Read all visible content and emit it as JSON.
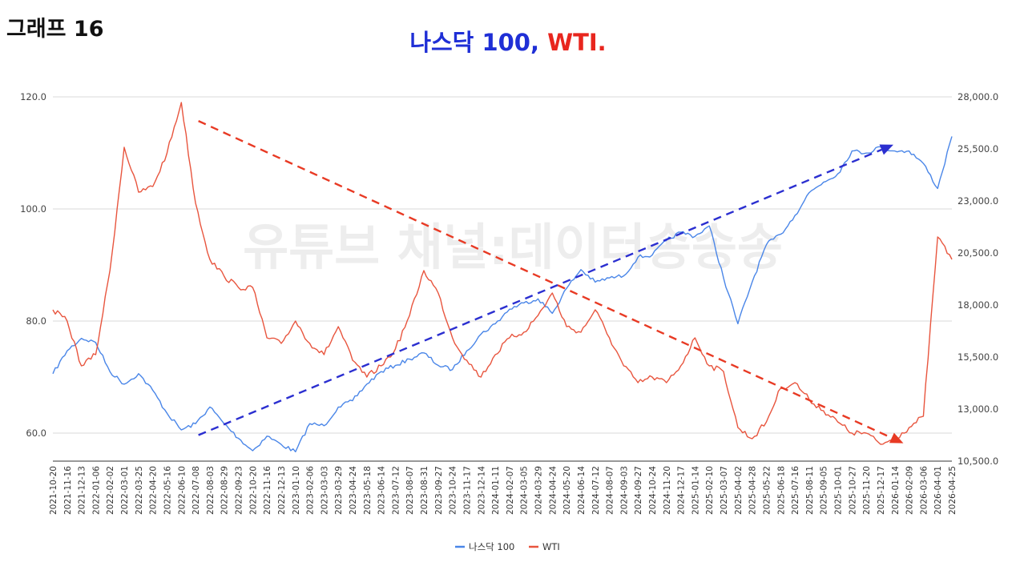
{
  "page_label": "그래프 16",
  "watermark": "유튜브 채널:데이터송송송",
  "colors": {
    "nasdaq": "#4a86e8",
    "wti": "#e8553e",
    "title_blue": "#1f2fd6",
    "title_red": "#e8261e",
    "trend_blue": "#2b2fd0",
    "trend_red": "#e83a24"
  },
  "chart_data": {
    "type": "line",
    "title_parts": [
      "나스닥 100, ",
      "WTI."
    ],
    "x_tick_labels": [
      "2021-10-20",
      "2021-11-16",
      "2021-12-13",
      "2022-01-06",
      "2022-02-02",
      "2022-03-01",
      "2022-03-25",
      "2022-04-20",
      "2022-05-16",
      "2022-06-10",
      "2022-07-08",
      "2022-08-03",
      "2022-08-29",
      "2022-09-23",
      "2022-10-20",
      "2022-11-16",
      "2022-12-13",
      "2023-01-10",
      "2023-02-06",
      "2023-03-03",
      "2023-03-29",
      "2023-04-24",
      "2023-05-18",
      "2023-06-14",
      "2023-07-12",
      "2023-08-07",
      "2023-08-31",
      "2023-09-27",
      "2023-10-24",
      "2023-11-17",
      "2023-12-14",
      "2024-01-11",
      "2024-02-07",
      "2024-03-05",
      "2024-03-29",
      "2024-04-24",
      "2024-05-20",
      "2024-06-14",
      "2024-07-12",
      "2024-08-07",
      "2024-09-03",
      "2024-09-27",
      "2024-10-24",
      "2024-11-20",
      "2024-12-17",
      "2025-01-14",
      "2025-02-10",
      "2025-03-07",
      "2025-04-02",
      "2025-04-28",
      "2025-05-22",
      "2025-06-18",
      "2025-07-16",
      "2025-08-11",
      "2025-09-05",
      "2025-10-01",
      "2025-10-27",
      "2025-11-20",
      "2025-12-17",
      "2026-01-14",
      "2026-02-09",
      "2026-03-06",
      "2026-04-01",
      "2026-04-25"
    ],
    "left_axis": {
      "min": 55,
      "max": 120,
      "ticks": [
        60.0,
        80.0,
        100.0,
        120.0
      ],
      "tick_labels": [
        "60.0",
        "80.0",
        "100.0",
        "120.0"
      ]
    },
    "right_axis": {
      "min": 10500,
      "max": 28000,
      "ticks": [
        10500,
        13000,
        15500,
        18000,
        20500,
        23000,
        25500,
        28000
      ],
      "tick_labels": [
        "10,500.0",
        "13,000.0",
        "15,500.0",
        "18,000.0",
        "20,500.0",
        "23,000.0",
        "25,500.0",
        "28,000.0"
      ]
    },
    "grid": true,
    "legend_position": "bottom",
    "series": [
      {
        "name": "나스닥 100",
        "axis": "right",
        "x": [
          0,
          1,
          2,
          3,
          4,
          5,
          6,
          7,
          8,
          9,
          10,
          11,
          12,
          13,
          14,
          15,
          16,
          17,
          18,
          19,
          20,
          21,
          22,
          23,
          24,
          25,
          26,
          27,
          28,
          29,
          30,
          31,
          32,
          33,
          34,
          35,
          36,
          37,
          38,
          39,
          40,
          41,
          42,
          43,
          44,
          45,
          46,
          47,
          48,
          49,
          50,
          51,
          52,
          53,
          54,
          55,
          56,
          57,
          58,
          59,
          60,
          61,
          62,
          63
        ],
        "values": [
          14700,
          15800,
          16400,
          16200,
          14800,
          14200,
          14700,
          13900,
          12800,
          12000,
          12300,
          13100,
          12300,
          11600,
          11000,
          11700,
          11300,
          10950,
          12300,
          12200,
          13100,
          13400,
          14200,
          14800,
          15100,
          15400,
          15700,
          15100,
          14900,
          15800,
          16600,
          17100,
          17800,
          18100,
          18300,
          17600,
          18800,
          19700,
          19100,
          19300,
          19400,
          20300,
          20400,
          21100,
          21500,
          21300,
          21800,
          19300,
          17100,
          19100,
          20900,
          21400,
          22300,
          23400,
          23900,
          24300,
          25400,
          25300,
          25600,
          25400,
          25400,
          24800,
          23600,
          26100
        ]
      },
      {
        "name": "WTI",
        "axis": "left",
        "x": [
          0,
          1,
          2,
          3,
          4,
          5,
          6,
          7,
          8,
          9,
          10,
          11,
          12,
          13,
          14,
          15,
          16,
          17,
          18,
          19,
          20,
          21,
          22,
          23,
          24,
          25,
          26,
          27,
          28,
          29,
          30,
          31,
          32,
          33,
          34,
          35,
          36,
          37,
          38,
          39,
          40,
          41,
          42,
          43,
          44,
          45,
          46,
          47,
          48,
          49,
          50,
          51,
          52,
          53,
          54,
          55,
          56,
          57,
          58,
          59,
          60,
          61,
          62,
          63
        ],
        "values": [
          82,
          80,
          72,
          74,
          89,
          111,
          103,
          104,
          110,
          119,
          101,
          91,
          88,
          86,
          86,
          77,
          76,
          80,
          76,
          74,
          79,
          73,
          70,
          72,
          75,
          81,
          89,
          85,
          77,
          73,
          70,
          74,
          77,
          78,
          81,
          85,
          79,
          78,
          82,
          77,
          72,
          69,
          70,
          69,
          72,
          77,
          72,
          71,
          61,
          59,
          62,
          68,
          69,
          66,
          64,
          62,
          60,
          60,
          58,
          59,
          61,
          63,
          95,
          91
        ]
      }
    ],
    "annotations": [
      {
        "type": "arrow",
        "style": "dashed",
        "color": "#e83a24",
        "axis": "left",
        "from": {
          "x": 10.2,
          "y": 115.7
        },
        "to": {
          "x": 59.6,
          "y": 58.2
        }
      },
      {
        "type": "arrow",
        "style": "dashed",
        "color": "#2b2fd0",
        "axis": "right",
        "from": {
          "x": 10.2,
          "y": 11750
        },
        "to": {
          "x": 58.9,
          "y": 25700
        }
      }
    ]
  }
}
